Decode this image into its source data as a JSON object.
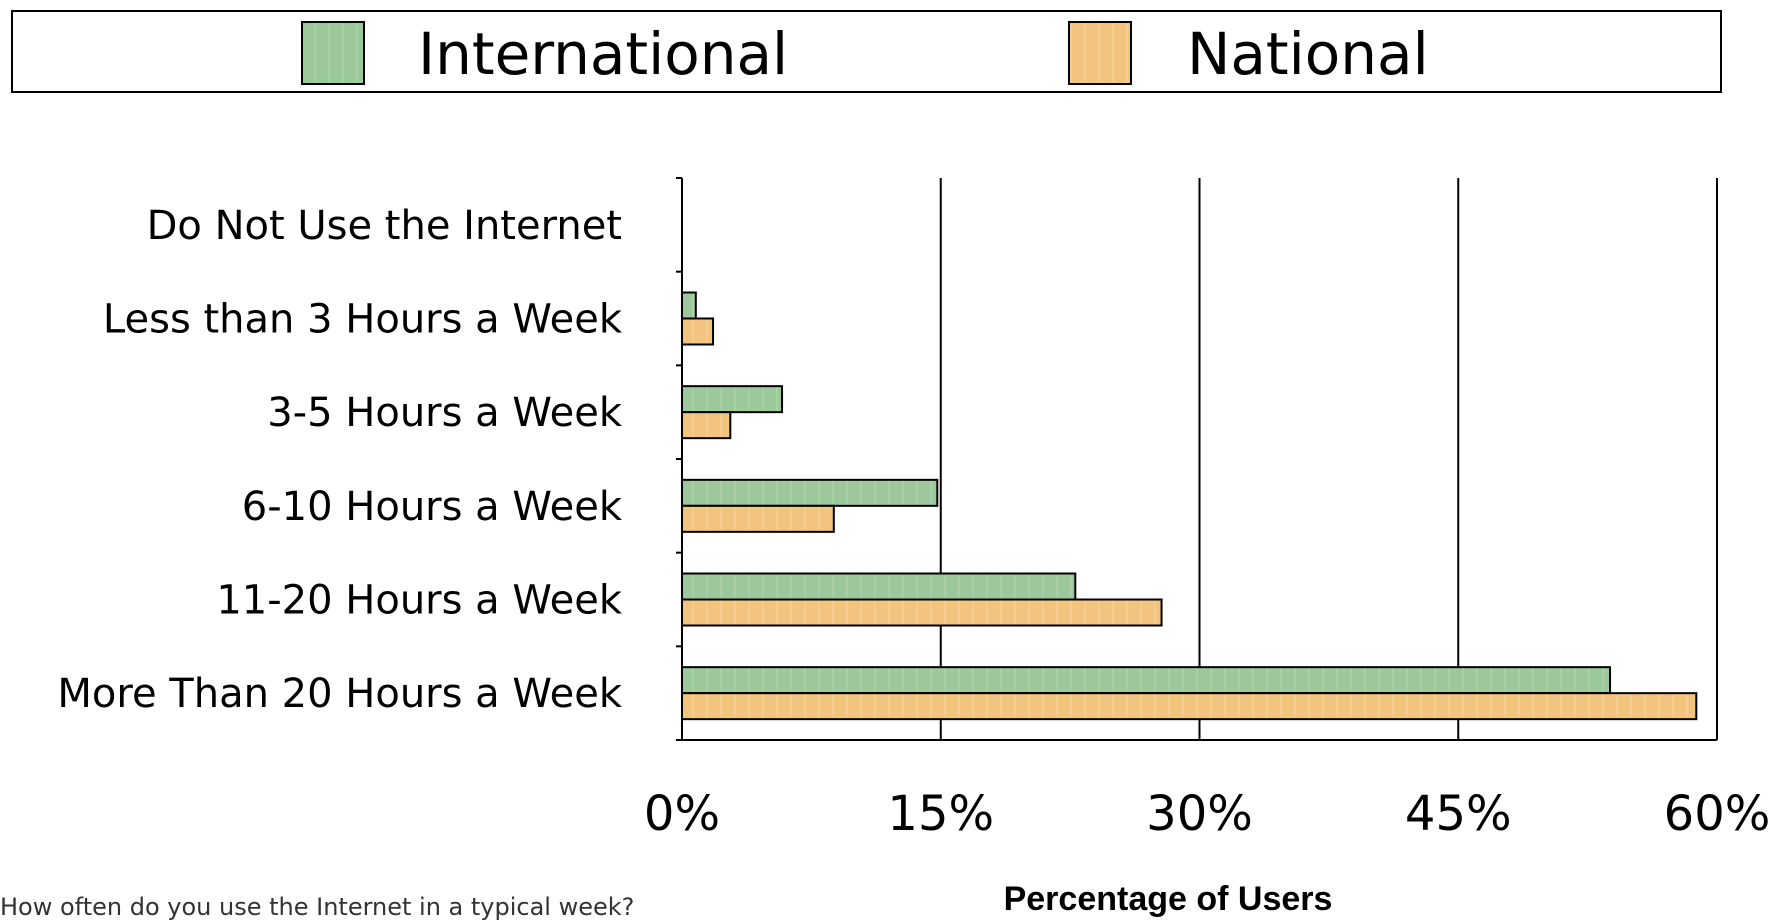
{
  "chart_data": {
    "type": "bar",
    "orientation": "horizontal",
    "categories": [
      "Do Not Use the Internet",
      "Less than 3 Hours a Week",
      "3-5 Hours a Week",
      "6-10 Hours a Week",
      "11-20 Hours a Week",
      "More Than 20 Hours a Week"
    ],
    "series": [
      {
        "name": "International",
        "color": "#9dc89b",
        "values": [
          0,
          0.8,
          5.8,
          14.8,
          22.8,
          53.8
        ]
      },
      {
        "name": "National",
        "color": "#f2c47e",
        "values": [
          0,
          1.8,
          2.8,
          8.8,
          27.8,
          58.8
        ]
      }
    ],
    "xlim": [
      0,
      60
    ],
    "xticks": [
      0,
      15,
      30,
      45,
      60
    ],
    "xtick_labels": [
      "0%",
      "15%",
      "30%",
      "45%",
      "60%"
    ],
    "xlabel": "Percentage of Users",
    "grid": "vertical",
    "legend_position": "top"
  },
  "question": "How often do you use the Internet in a typical week?"
}
